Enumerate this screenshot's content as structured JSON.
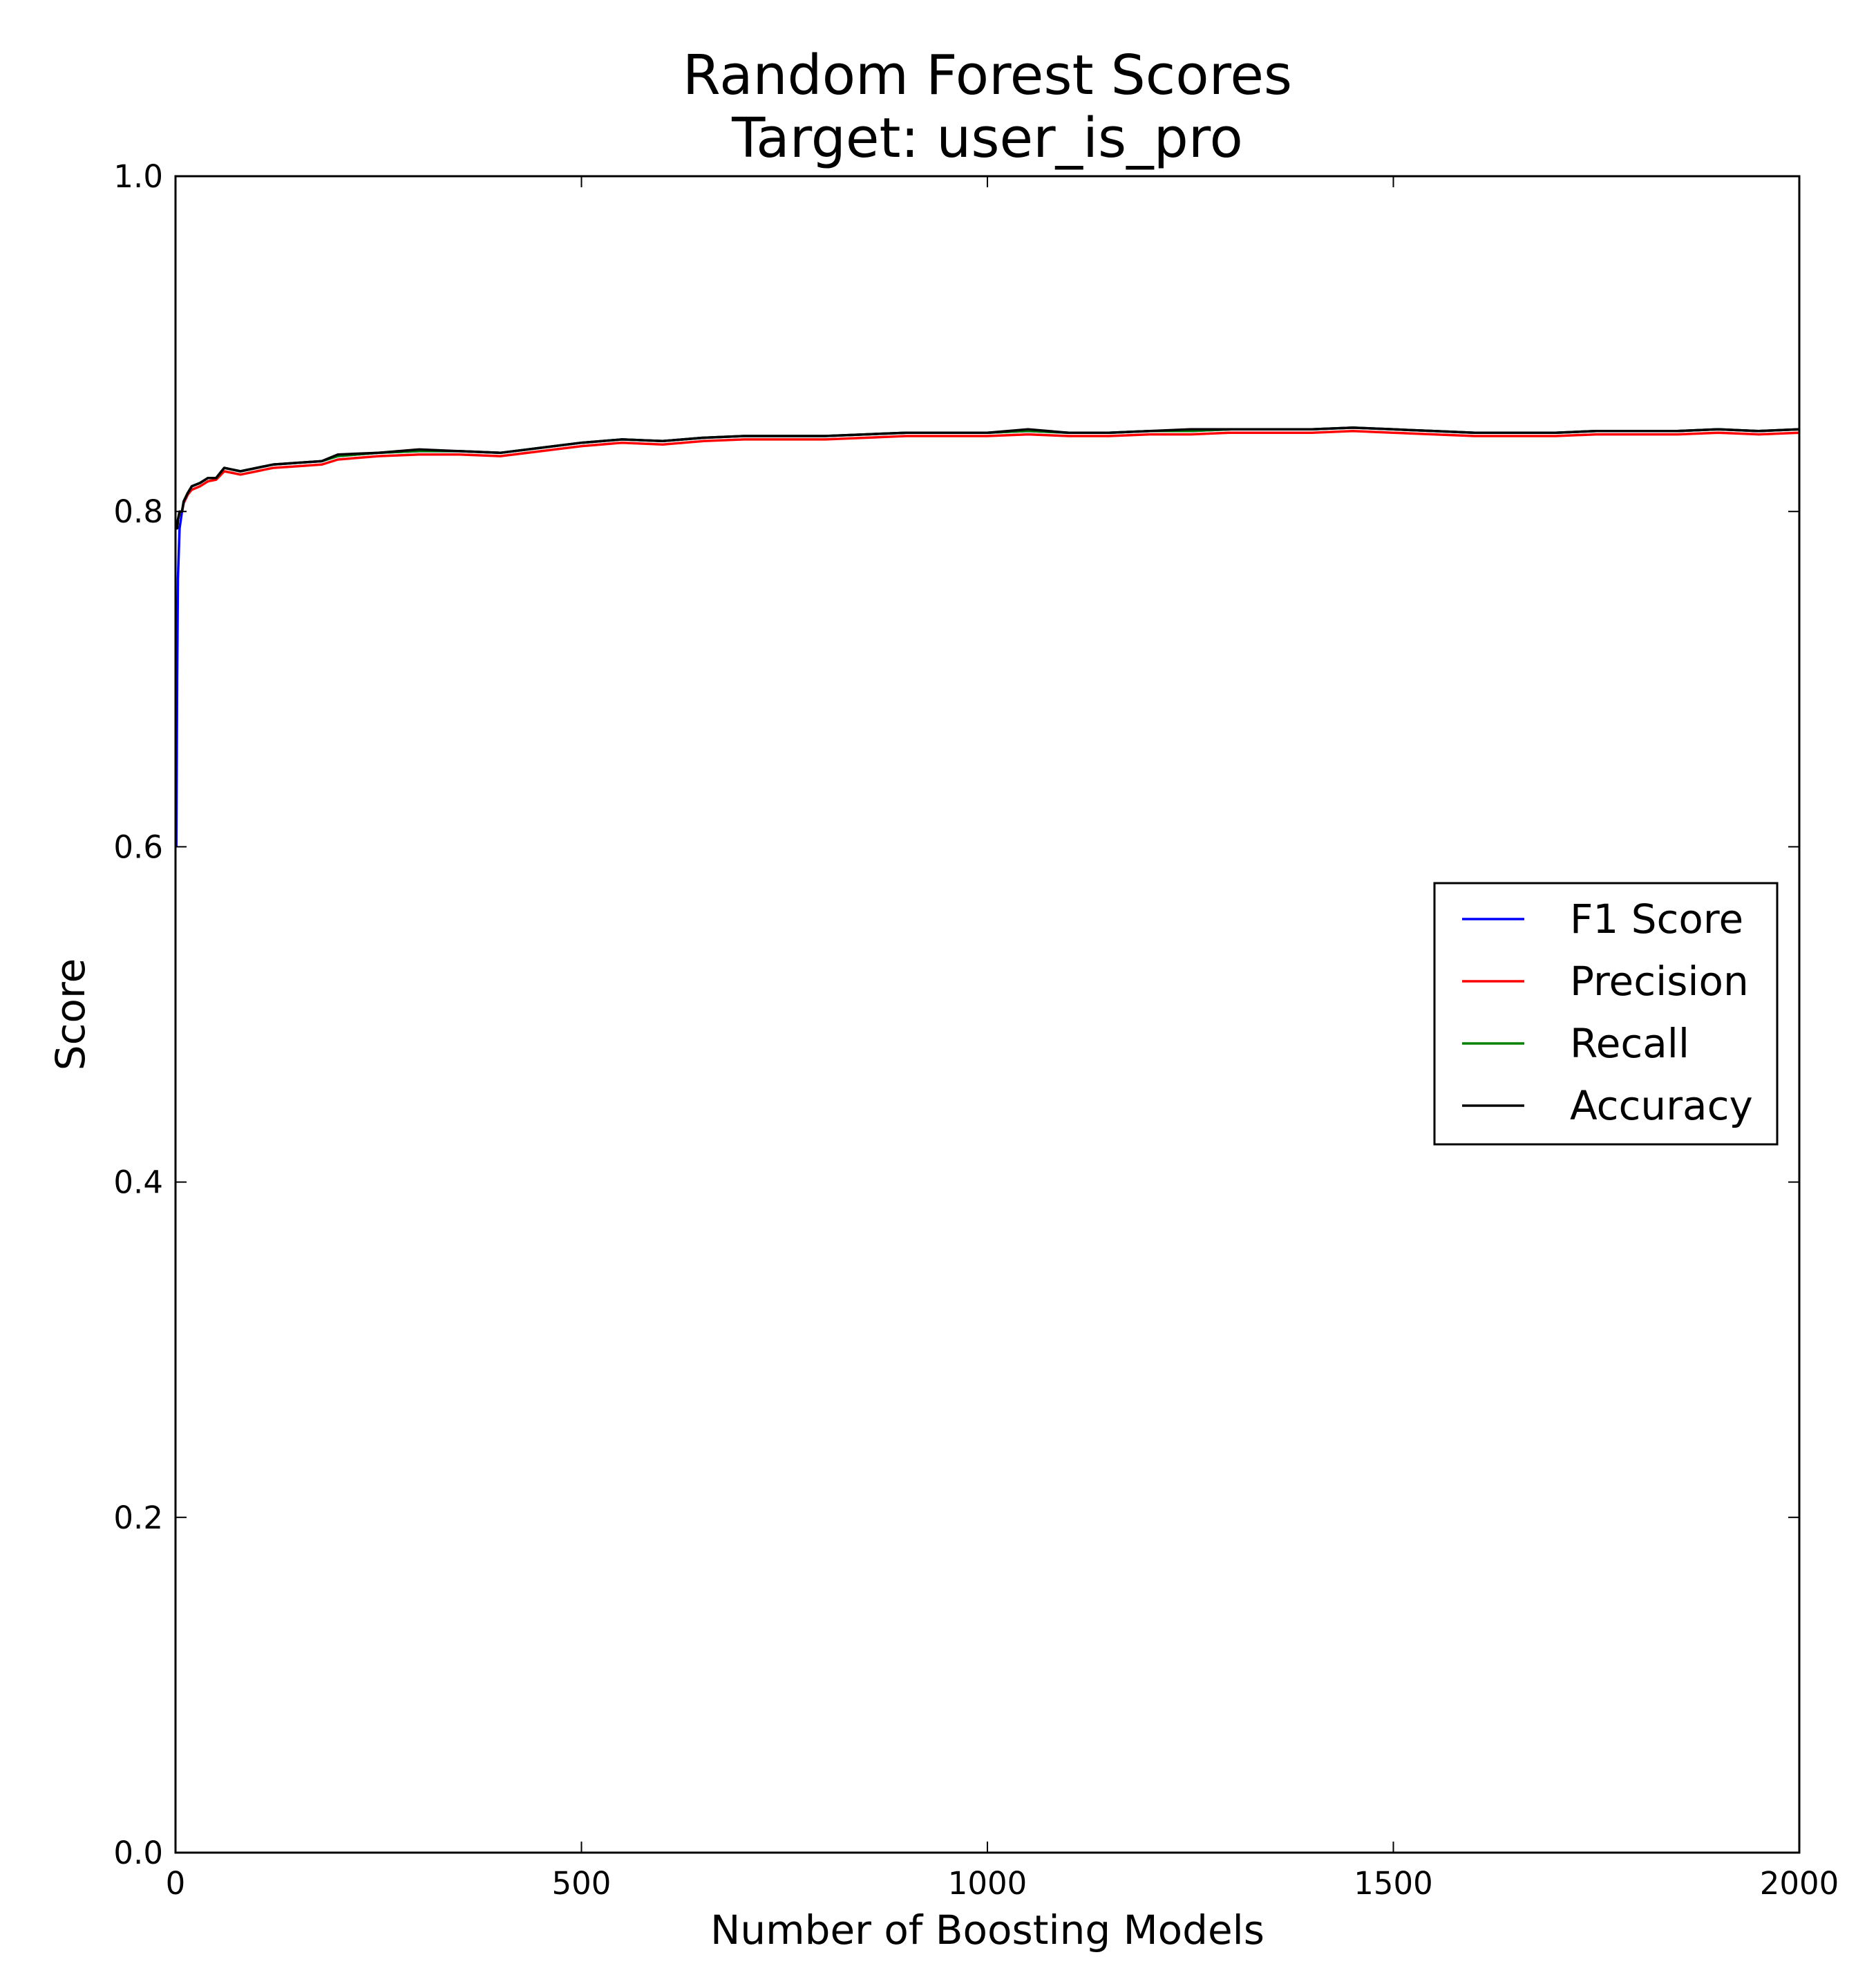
{
  "chart_data": {
    "type": "line",
    "title_line1": "Random Forest Scores",
    "title_line2": "Target: user_is_pro",
    "xlabel": "Number of Boosting Models",
    "ylabel": "Score",
    "xlim": [
      0,
      2000
    ],
    "ylim": [
      0.0,
      1.0
    ],
    "xticks": [
      0,
      500,
      1000,
      1500,
      2000
    ],
    "xtick_labels": [
      "0",
      "500",
      "1000",
      "1500",
      "2000"
    ],
    "yticks": [
      0.0,
      0.2,
      0.4,
      0.6,
      0.8,
      1.0
    ],
    "ytick_labels": [
      "0.0",
      "0.2",
      "0.4",
      "0.6",
      "0.8",
      "1.0"
    ],
    "grid": false,
    "legend_position": "center-right",
    "x": [
      1,
      2,
      3,
      5,
      8,
      10,
      15,
      20,
      30,
      40,
      50,
      60,
      70,
      80,
      100,
      120,
      150,
      180,
      200,
      250,
      300,
      350,
      400,
      450,
      500,
      550,
      600,
      650,
      700,
      750,
      800,
      850,
      900,
      950,
      1000,
      1050,
      1100,
      1150,
      1200,
      1250,
      1300,
      1350,
      1400,
      1450,
      1500,
      1550,
      1600,
      1650,
      1700,
      1750,
      1800,
      1850,
      1900,
      1950,
      2000
    ],
    "series": [
      {
        "name": "F1 Score",
        "color": "#0000ff",
        "values": [
          0.6,
          0.7,
          0.76,
          0.79,
          0.8,
          0.805,
          0.81,
          0.815,
          0.817,
          0.82,
          0.82,
          0.826,
          0.825,
          0.824,
          0.826,
          0.828,
          0.829,
          0.83,
          0.833,
          0.835,
          0.836,
          0.836,
          0.835,
          0.838,
          0.841,
          0.843,
          0.842,
          0.844,
          0.845,
          0.845,
          0.845,
          0.846,
          0.847,
          0.847,
          0.847,
          0.848,
          0.847,
          0.847,
          0.848,
          0.848,
          0.849,
          0.849,
          0.849,
          0.85,
          0.849,
          0.848,
          0.847,
          0.847,
          0.847,
          0.848,
          0.848,
          0.848,
          0.849,
          0.848,
          0.849
        ]
      },
      {
        "name": "Precision",
        "color": "#ff0000",
        "values": [
          0.79,
          0.79,
          0.795,
          0.8,
          0.8,
          0.805,
          0.81,
          0.813,
          0.815,
          0.818,
          0.819,
          0.824,
          0.823,
          0.822,
          0.824,
          0.826,
          0.827,
          0.828,
          0.831,
          0.833,
          0.834,
          0.834,
          0.833,
          0.836,
          0.839,
          0.841,
          0.84,
          0.842,
          0.843,
          0.843,
          0.843,
          0.844,
          0.845,
          0.845,
          0.845,
          0.846,
          0.845,
          0.845,
          0.846,
          0.846,
          0.847,
          0.847,
          0.847,
          0.848,
          0.847,
          0.846,
          0.845,
          0.845,
          0.845,
          0.846,
          0.846,
          0.846,
          0.847,
          0.846,
          0.847
        ]
      },
      {
        "name": "Recall",
        "color": "#008000",
        "values": [
          0.79,
          0.79,
          0.795,
          0.8,
          0.8,
          0.806,
          0.811,
          0.815,
          0.817,
          0.82,
          0.82,
          0.826,
          0.825,
          0.824,
          0.826,
          0.828,
          0.829,
          0.83,
          0.833,
          0.835,
          0.836,
          0.836,
          0.835,
          0.838,
          0.841,
          0.843,
          0.842,
          0.844,
          0.845,
          0.845,
          0.845,
          0.846,
          0.847,
          0.847,
          0.847,
          0.848,
          0.847,
          0.847,
          0.848,
          0.848,
          0.849,
          0.849,
          0.849,
          0.85,
          0.849,
          0.848,
          0.847,
          0.847,
          0.847,
          0.848,
          0.848,
          0.848,
          0.849,
          0.848,
          0.849
        ]
      },
      {
        "name": "Accuracy",
        "color": "#000000",
        "values": [
          0.79,
          0.79,
          0.795,
          0.8,
          0.8,
          0.806,
          0.811,
          0.815,
          0.817,
          0.82,
          0.82,
          0.826,
          0.825,
          0.824,
          0.826,
          0.828,
          0.829,
          0.83,
          0.834,
          0.835,
          0.837,
          0.836,
          0.835,
          0.838,
          0.841,
          0.843,
          0.842,
          0.844,
          0.845,
          0.845,
          0.845,
          0.846,
          0.847,
          0.847,
          0.847,
          0.849,
          0.847,
          0.847,
          0.848,
          0.849,
          0.849,
          0.849,
          0.849,
          0.85,
          0.849,
          0.848,
          0.847,
          0.847,
          0.847,
          0.848,
          0.848,
          0.848,
          0.849,
          0.848,
          0.849
        ]
      }
    ]
  }
}
